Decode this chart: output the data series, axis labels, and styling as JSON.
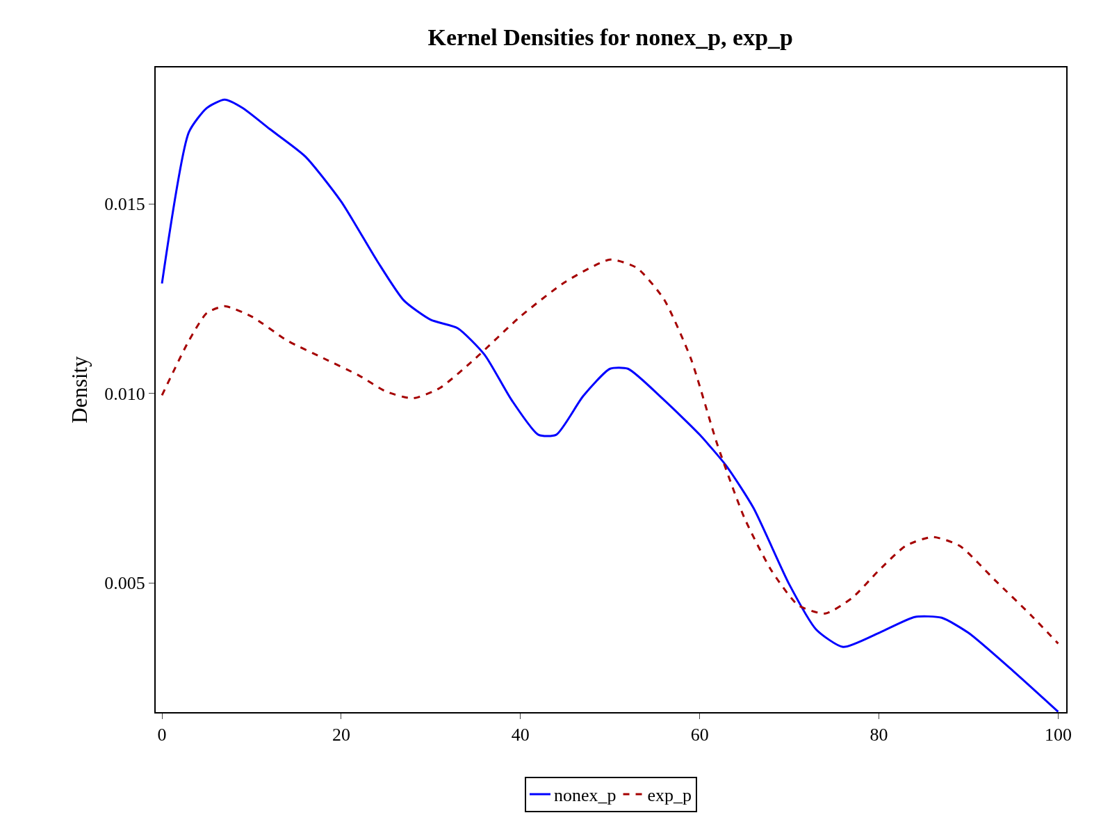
{
  "chart_data": {
    "type": "line",
    "title": "Kernel Densities for nonex_p, exp_p",
    "ylabel": "Density",
    "xlim": [
      -0.7,
      100.9
    ],
    "xticks": [
      0,
      20,
      40,
      60,
      80,
      100
    ],
    "ylim": [
      0.00159,
      0.0186
    ],
    "yticks": [
      {
        "value": 0.005,
        "label": "0.005"
      },
      {
        "value": 0.01,
        "label": "0.010"
      },
      {
        "value": 0.015,
        "label": "0.015"
      }
    ],
    "legend": "bottom",
    "series": [
      {
        "name": "nonex_p",
        "color": "#0000ff",
        "line_style": "solid",
        "x": [
          0,
          3,
          5,
          7,
          9,
          12,
          16,
          20,
          24,
          27,
          30,
          33,
          36,
          39,
          42,
          44,
          47,
          50,
          52,
          56,
          60,
          63,
          66,
          70,
          73,
          76,
          80,
          84,
          87,
          90,
          95,
          100
        ],
        "values": [
          0.0129,
          0.01689,
          0.01753,
          0.01775,
          0.01753,
          0.01698,
          0.01625,
          0.01506,
          0.0135,
          0.01245,
          0.01194,
          0.01172,
          0.01102,
          0.00983,
          0.00891,
          0.00891,
          0.00993,
          0.01065,
          0.01065,
          0.00983,
          0.00891,
          0.00808,
          0.00698,
          0.00496,
          0.00377,
          0.00331,
          0.00368,
          0.0041,
          0.00408,
          0.00368,
          0.00267,
          0.0016
        ]
      },
      {
        "name": "exp_p",
        "color": "#a50000",
        "line_style": "dashed",
        "x": [
          0,
          3,
          5,
          7,
          10,
          14,
          18,
          22,
          25,
          28,
          31,
          35,
          40,
          45,
          50,
          53,
          56,
          59,
          62,
          65,
          68,
          71,
          74,
          77,
          80,
          83,
          86,
          89,
          93,
          97,
          100
        ],
        "values": [
          0.00995,
          0.01139,
          0.01212,
          0.0123,
          0.01203,
          0.01139,
          0.01093,
          0.01047,
          0.01005,
          0.00987,
          0.01014,
          0.01093,
          0.01203,
          0.01294,
          0.01353,
          0.01331,
          0.01249,
          0.01093,
          0.00863,
          0.00671,
          0.00533,
          0.00441,
          0.00419,
          0.0046,
          0.00533,
          0.00598,
          0.00621,
          0.00598,
          0.00506,
          0.00414,
          0.0034
        ]
      }
    ]
  }
}
